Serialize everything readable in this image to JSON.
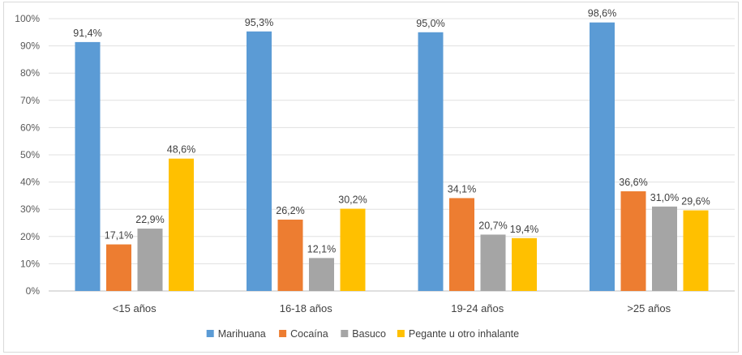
{
  "chart_data": {
    "type": "bar",
    "categories": [
      "<15 años",
      "16-18 años",
      "19-24 años",
      ">25 años"
    ],
    "series": [
      {
        "name": "Marihuana",
        "color": "#5b9bd5",
        "values": [
          91.4,
          95.3,
          95.0,
          98.6
        ],
        "labels": [
          "91,4%",
          "95,3%",
          "95,0%",
          "98,6%"
        ]
      },
      {
        "name": "Cocaína",
        "color": "#ed7d31",
        "values": [
          17.1,
          26.2,
          34.1,
          36.6
        ],
        "labels": [
          "17,1%",
          "26,2%",
          "34,1%",
          "36,6%"
        ]
      },
      {
        "name": "Basuco",
        "color": "#a5a5a5",
        "values": [
          22.9,
          12.1,
          20.7,
          31.0
        ],
        "labels": [
          "22,9%",
          "12,1%",
          "20,7%",
          "31,0%"
        ]
      },
      {
        "name": "Pegante u otro inhalante",
        "color": "#ffc000",
        "values": [
          48.6,
          30.2,
          19.4,
          29.6
        ],
        "labels": [
          "48,6%",
          "30,2%",
          "19,4%",
          "29,6%"
        ]
      }
    ],
    "y_ticks": [
      "0%",
      "10%",
      "20%",
      "30%",
      "40%",
      "50%",
      "60%",
      "70%",
      "80%",
      "90%",
      "100%"
    ],
    "ylim": [
      0,
      100
    ],
    "grid": true,
    "legend_position": "bottom"
  }
}
